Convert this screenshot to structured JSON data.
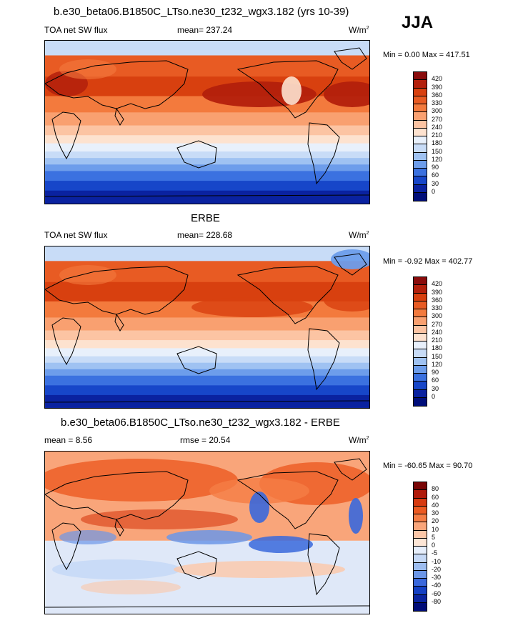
{
  "season": "JJA",
  "panels": [
    {
      "title": "b.e30_beta06.B1850C_LTso.ne30_t232_wgx3.182 (yrs 10-39)",
      "left_label": "TOA net SW flux",
      "mid_label": "mean= 237.24",
      "units": "W/m",
      "units_sup": "2",
      "stats": "Min =   0.00 Max = 417.51",
      "colorbar_ticks": [
        "420",
        "390",
        "360",
        "330",
        "300",
        "270",
        "240",
        "210",
        "180",
        "150",
        "120",
        "90",
        "60",
        "30",
        "0"
      ],
      "colorbar_colors": [
        "#8a0c0c",
        "#b3200c",
        "#d8400f",
        "#e85b23",
        "#f37a3d",
        "#f9a070",
        "#fcc4a3",
        "#fde2cf",
        "#e8f0fb",
        "#c8dcf7",
        "#9fc2f2",
        "#6d9deb",
        "#3b71e0",
        "#1746c9",
        "#0a22a0",
        "#000e7a"
      ],
      "field": "model"
    },
    {
      "title": "ERBE",
      "left_label": "TOA net SW flux",
      "mid_label": "mean= 228.68",
      "units": "W/m",
      "units_sup": "2",
      "stats": "Min = -0.92 Max = 402.77",
      "colorbar_ticks": [
        "420",
        "390",
        "360",
        "330",
        "300",
        "270",
        "240",
        "210",
        "180",
        "150",
        "120",
        "90",
        "60",
        "30",
        "0"
      ],
      "colorbar_colors": [
        "#8a0c0c",
        "#b3200c",
        "#d8400f",
        "#e85b23",
        "#f37a3d",
        "#f9a070",
        "#fcc4a3",
        "#fde2cf",
        "#e8f0fb",
        "#c8dcf7",
        "#9fc2f2",
        "#6d9deb",
        "#3b71e0",
        "#1746c9",
        "#0a22a0",
        "#000e7a"
      ],
      "field": "obs"
    },
    {
      "title": "b.e30_beta06.B1850C_LTso.ne30_t232_wgx3.182 - ERBE",
      "left_label": "mean =   8.56",
      "mid_label": "rmse =  20.54",
      "units": "W/m",
      "units_sup": "2",
      "stats": "Min = -60.65 Max =  90.70",
      "colorbar_ticks": [
        "80",
        "60",
        "40",
        "30",
        "20",
        "10",
        "5",
        "0",
        "-5",
        "-10",
        "-20",
        "-30",
        "-40",
        "-60",
        "-80"
      ],
      "colorbar_colors": [
        "#7a0606",
        "#b01a0a",
        "#d73a10",
        "#ec5a22",
        "#f57d45",
        "#f9a57a",
        "#fcc7a8",
        "#fde6d6",
        "#e6eefb",
        "#c6d9f6",
        "#9dbdf0",
        "#6c97e8",
        "#3a68dc",
        "#1440c4",
        "#0a24a0",
        "#000c78"
      ],
      "field": "diff"
    }
  ]
}
